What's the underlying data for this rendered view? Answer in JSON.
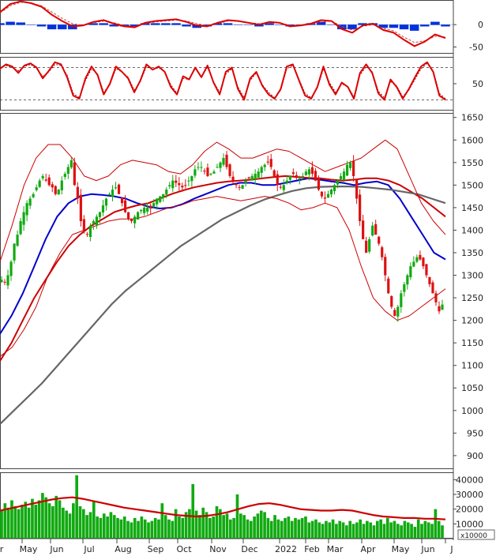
{
  "chart_data": [
    {
      "panel": "macd",
      "type": "line",
      "ytick_labels": [
        "0",
        "-50"
      ],
      "yticks": [
        0,
        -50
      ],
      "ylim": [
        -65,
        55
      ],
      "series": [
        {
          "color": "#dd0000",
          "values": [
            28,
            46,
            52,
            48,
            40,
            22,
            8,
            -4,
            -2,
            6,
            10,
            2,
            -4,
            -6,
            4,
            8,
            10,
            12,
            6,
            -2,
            -4,
            4,
            10,
            8,
            4,
            0,
            6,
            4,
            -4,
            -2,
            2,
            10,
            8,
            -10,
            -18,
            -2,
            2,
            -12,
            -18,
            -34,
            -48,
            -38,
            -22,
            -30
          ]
        },
        {
          "color": "#cc4444",
          "values": [
            26,
            42,
            50,
            48,
            42,
            28,
            14,
            2,
            -2,
            4,
            8,
            4,
            -2,
            -4,
            2,
            6,
            8,
            10,
            8,
            2,
            -2,
            2,
            8,
            8,
            4,
            2,
            4,
            4,
            -2,
            -2,
            0,
            6,
            8,
            -4,
            -12,
            -4,
            0,
            -8,
            -14,
            -28,
            -40,
            -36,
            -26,
            -28
          ]
        }
      ],
      "histogram_values": [
        2,
        4,
        3,
        0,
        -2,
        -6,
        -6,
        -6,
        0,
        2,
        2,
        -2,
        -2,
        -2,
        2,
        2,
        2,
        2,
        -2,
        -4,
        -2,
        2,
        2,
        0,
        0,
        -2,
        2,
        0,
        -2,
        0,
        2,
        4,
        0,
        -6,
        -6,
        2,
        2,
        -4,
        -4,
        -6,
        -8,
        -2,
        4,
        -2
      ]
    },
    {
      "panel": "stochastic",
      "type": "line",
      "ytick_labels": [
        "50"
      ],
      "yticks": [
        50
      ],
      "ylim": [
        0,
        100
      ],
      "reference_lines": [
        20,
        80
      ],
      "series": [
        {
          "color": "#dd0000",
          "values": [
            78,
            86,
            82,
            70,
            84,
            88,
            80,
            60,
            74,
            90,
            86,
            62,
            28,
            22,
            60,
            82,
            66,
            30,
            50,
            82,
            72,
            60,
            34,
            56,
            86,
            76,
            82,
            72,
            44,
            30,
            64,
            58,
            80,
            62,
            84,
            52,
            30,
            72,
            80,
            40,
            20,
            60,
            72,
            46,
            30,
            22,
            40,
            82,
            86,
            56,
            28,
            22,
            44,
            82,
            48,
            30,
            52,
            44,
            22,
            70,
            86,
            70,
            32,
            20,
            58,
            44,
            22,
            40,
            62,
            82,
            90,
            72,
            28,
            20
          ]
        },
        {
          "color": "#990000",
          "values": [
            80,
            84,
            80,
            74,
            82,
            86,
            78,
            64,
            72,
            86,
            84,
            66,
            32,
            24,
            56,
            78,
            68,
            34,
            48,
            78,
            72,
            62,
            38,
            54,
            82,
            76,
            80,
            72,
            48,
            32,
            60,
            58,
            78,
            64,
            80,
            54,
            34,
            68,
            78,
            44,
            24,
            56,
            70,
            48,
            34,
            24,
            38,
            78,
            84,
            58,
            32,
            24,
            42,
            78,
            52,
            34,
            50,
            44,
            26,
            66,
            82,
            72,
            36,
            24,
            54,
            46,
            26,
            38,
            58,
            78,
            88,
            74,
            32,
            22
          ]
        }
      ]
    },
    {
      "panel": "price",
      "type": "candlestick",
      "ytick_labels": [
        "1650",
        "1600",
        "1550",
        "1500",
        "1450",
        "1400",
        "1350",
        "1300",
        "1250",
        "1200",
        "1150",
        "1100",
        "1050",
        "1000",
        "950",
        "900"
      ],
      "yticks": [
        1650,
        1600,
        1550,
        1500,
        1450,
        1400,
        1350,
        1300,
        1250,
        1200,
        1150,
        1100,
        1050,
        1000,
        950,
        900
      ],
      "ylim": [
        870,
        1660
      ],
      "closes": [
        1290,
        1285,
        1300,
        1330,
        1370,
        1390,
        1420,
        1440,
        1460,
        1470,
        1480,
        1495,
        1510,
        1520,
        1510,
        1500,
        1495,
        1480,
        1490,
        1510,
        1525,
        1540,
        1555,
        1500,
        1470,
        1420,
        1400,
        1390,
        1410,
        1420,
        1430,
        1440,
        1455,
        1470,
        1480,
        1490,
        1495,
        1480,
        1460,
        1440,
        1425,
        1420,
        1430,
        1440,
        1445,
        1450,
        1450,
        1448,
        1460,
        1470,
        1475,
        1480,
        1490,
        1500,
        1510,
        1505,
        1500,
        1495,
        1500,
        1510,
        1520,
        1535,
        1540,
        1540,
        1530,
        1520,
        1525,
        1530,
        1540,
        1550,
        1560,
        1540,
        1520,
        1510,
        1500,
        1495,
        1500,
        1510,
        1515,
        1520,
        1525,
        1530,
        1540,
        1545,
        1550,
        1540,
        1520,
        1500,
        1495,
        1500,
        1510,
        1520,
        1525,
        1520,
        1515,
        1520,
        1530,
        1535,
        1525,
        1510,
        1490,
        1475,
        1470,
        1480,
        1490,
        1500,
        1510,
        1520,
        1530,
        1545,
        1550,
        1520,
        1470,
        1420,
        1380,
        1350,
        1380,
        1410,
        1390,
        1370,
        1340,
        1300,
        1260,
        1230,
        1210,
        1230,
        1260,
        1280,
        1300,
        1320,
        1330,
        1340,
        1335,
        1320,
        1300,
        1280,
        1260,
        1240,
        1220,
        1235
      ],
      "series": [
        {
          "name": "MA20",
          "color": "#0000cc",
          "values": [
            1170,
            1210,
            1260,
            1320,
            1380,
            1430,
            1460,
            1475,
            1480,
            1478,
            1475,
            1470,
            1460,
            1452,
            1448,
            1450,
            1458,
            1470,
            1480,
            1490,
            1500,
            1505,
            1505,
            1500,
            1500,
            1505,
            1510,
            1515,
            1512,
            1508,
            1505,
            1500,
            1505,
            1508,
            1500,
            1470,
            1430,
            1390,
            1350,
            1335
          ]
        },
        {
          "name": "MA50",
          "color": "#cc0000",
          "values": [
            1110,
            1150,
            1200,
            1250,
            1290,
            1330,
            1365,
            1390,
            1410,
            1425,
            1440,
            1448,
            1455,
            1460,
            1470,
            1480,
            1488,
            1495,
            1500,
            1505,
            1508,
            1510,
            1512,
            1515,
            1518,
            1520,
            1518,
            1516,
            1515,
            1512,
            1510,
            1512,
            1515,
            1515,
            1510,
            1500,
            1485,
            1470,
            1450,
            1430
          ]
        },
        {
          "name": "MA200",
          "color": "#666666",
          "values": [
            970,
            1000,
            1030,
            1060,
            1095,
            1130,
            1165,
            1200,
            1235,
            1265,
            1290,
            1315,
            1340,
            1365,
            1385,
            1405,
            1425,
            1440,
            1455,
            1468,
            1478,
            1487,
            1493,
            1496,
            1497,
            1497,
            1496,
            1493,
            1490,
            1485,
            1480,
            1470,
            1460
          ]
        },
        {
          "name": "BB-upper",
          "color": "#cc0000",
          "values": [
            1330,
            1410,
            1500,
            1560,
            1590,
            1590,
            1560,
            1520,
            1510,
            1520,
            1545,
            1555,
            1550,
            1545,
            1530,
            1525,
            1545,
            1575,
            1595,
            1580,
            1560,
            1560,
            1570,
            1580,
            1575,
            1560,
            1545,
            1530,
            1540,
            1550,
            1560,
            1580,
            1600,
            1580,
            1520,
            1460,
            1420,
            1390
          ]
        },
        {
          "name": "BB-lower",
          "color": "#cc0000",
          "values": [
            1120,
            1140,
            1180,
            1230,
            1300,
            1350,
            1390,
            1400,
            1410,
            1420,
            1425,
            1425,
            1430,
            1440,
            1450,
            1455,
            1465,
            1470,
            1475,
            1470,
            1465,
            1470,
            1475,
            1470,
            1460,
            1445,
            1450,
            1460,
            1450,
            1400,
            1320,
            1250,
            1220,
            1200,
            1210,
            1230,
            1250,
            1270
          ]
        }
      ]
    },
    {
      "panel": "volume",
      "type": "bar",
      "ytick_labels": [
        "40000",
        "30000",
        "20000",
        "10000"
      ],
      "yticks": [
        40000,
        30000,
        20000,
        10000
      ],
      "ylim": [
        0,
        45000
      ],
      "unit_label": "x10000",
      "values": [
        19000,
        24000,
        21000,
        26000,
        22000,
        20000,
        23000,
        25000,
        21000,
        27000,
        23000,
        26000,
        31000,
        28000,
        24000,
        22000,
        29000,
        26000,
        21000,
        19000,
        17000,
        24000,
        43000,
        22000,
        20000,
        16000,
        18000,
        25000,
        15000,
        14000,
        17000,
        15000,
        18000,
        16000,
        14000,
        13000,
        15000,
        12000,
        11000,
        14000,
        12000,
        15000,
        13000,
        11000,
        12000,
        14000,
        13000,
        24000,
        16000,
        13000,
        12000,
        20000,
        15000,
        14000,
        18000,
        20000,
        37000,
        19000,
        16000,
        21000,
        18000,
        14000,
        15000,
        22000,
        20000,
        16000,
        17000,
        13000,
        14000,
        30000,
        17000,
        16000,
        13000,
        12000,
        15000,
        17000,
        19000,
        18000,
        14000,
        12000,
        16000,
        13000,
        12000,
        14000,
        15000,
        12000,
        14000,
        13000,
        14000,
        15000,
        11000,
        12000,
        13000,
        11000,
        10000,
        12000,
        11000,
        13000,
        10000,
        12000,
        11000,
        9000,
        12000,
        10000,
        11000,
        13000,
        10000,
        12000,
        11000,
        9000,
        12000,
        13000,
        10000,
        14000,
        11000,
        12000,
        10000,
        9000,
        12000,
        11000,
        10000,
        8000,
        13000,
        10000,
        12000,
        11000,
        10000,
        20000,
        12000,
        9000
      ],
      "series": [
        {
          "name": "volume-ma",
          "color": "#cc0000",
          "values": [
            19000,
            20500,
            22000,
            23500,
            25000,
            26500,
            27500,
            28000,
            27000,
            25500,
            24000,
            22500,
            21000,
            20000,
            19000,
            18000,
            17000,
            16000,
            15500,
            15000,
            15500,
            16500,
            18000,
            20000,
            22000,
            23500,
            24000,
            23000,
            21500,
            20000,
            19500,
            19000,
            19000,
            19500,
            19000,
            17500,
            16000,
            15000,
            14500,
            14000,
            14000,
            13500,
            13500,
            13000
          ]
        }
      ]
    }
  ],
  "x_axis": {
    "labels": [
      "Apr",
      "May",
      "Jun",
      "Jul",
      "Aug",
      "Sep",
      "Oct",
      "Nov",
      "Dec",
      "2022",
      "Feb",
      "Mar",
      "Apr",
      "May",
      "Jun",
      "Jul"
    ],
    "display_labels": [
      "r",
      "May",
      "Jun",
      "Jul",
      "Aug",
      "Sep",
      "Oct",
      "Nov",
      "Dec",
      "2022",
      "Feb",
      "Mar",
      "Apr",
      "May",
      "Jun",
      "J"
    ]
  }
}
